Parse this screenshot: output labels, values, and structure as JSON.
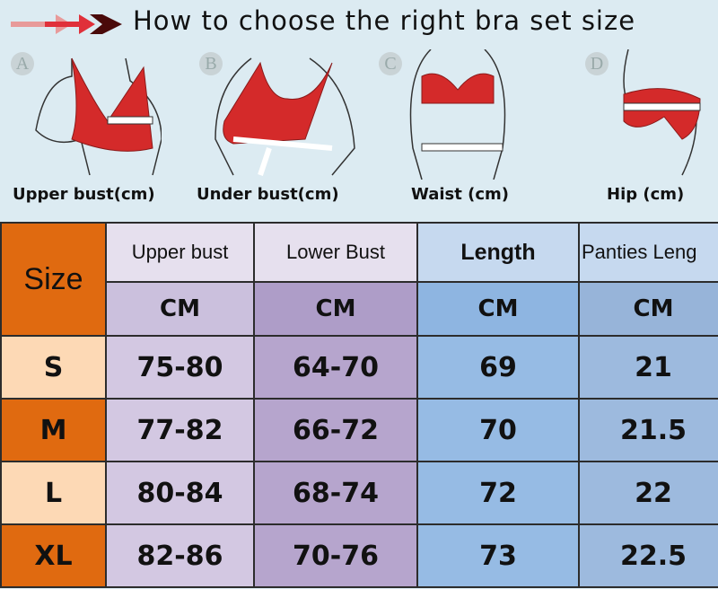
{
  "title": "How to choose the right bra set size",
  "figures": [
    {
      "letter": "A",
      "caption": "Upper bust(cm)"
    },
    {
      "letter": "B",
      "caption": "Under bust(cm)"
    },
    {
      "letter": "C",
      "caption": "Waist (cm)"
    },
    {
      "letter": "D",
      "caption": "Hip (cm)"
    }
  ],
  "table": {
    "size_header": "Size",
    "headers": [
      "Upper bust",
      "Lower Bust",
      "Length",
      "Panties Leng"
    ],
    "units": [
      "CM",
      "CM",
      "CM",
      "CM"
    ],
    "rows": [
      {
        "size": "S",
        "values": [
          "75-80",
          "64-70",
          "69",
          "21"
        ]
      },
      {
        "size": "M",
        "values": [
          "77-82",
          "66-72",
          "70",
          "21.5"
        ]
      },
      {
        "size": "L",
        "values": [
          "80-84",
          "68-74",
          "72",
          "22"
        ]
      },
      {
        "size": "XL",
        "values": [
          "82-86",
          "70-76",
          "73",
          "22.5"
        ]
      }
    ]
  },
  "colors": {
    "accent_orange": "#e06a10",
    "light_peach": "#fdd9b5",
    "bra_red": "#d42a2a",
    "background": "#dcebf2"
  }
}
